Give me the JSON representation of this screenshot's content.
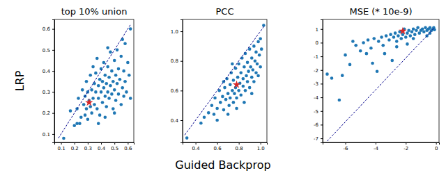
{
  "chart_data": [
    {
      "type": "scatter",
      "title": "top 10% union",
      "y_label": "LRP",
      "xlim": [
        0.05,
        0.645
      ],
      "ylim": [
        0.06,
        0.645
      ],
      "xticks": [
        0.1,
        0.2,
        0.3,
        0.4,
        0.5,
        0.6
      ],
      "yticks": [
        0.1,
        0.2,
        0.3,
        0.4,
        0.5,
        0.6
      ],
      "series": [
        {
          "type": "scatter",
          "color": "#1f77b4",
          "marker": "circle",
          "x": [
            0.12,
            0.17,
            0.2,
            0.22,
            0.23,
            0.24,
            0.25,
            0.26,
            0.27,
            0.28,
            0.28,
            0.29,
            0.29,
            0.3,
            0.3,
            0.31,
            0.32,
            0.32,
            0.33,
            0.33,
            0.34,
            0.34,
            0.35,
            0.35,
            0.36,
            0.36,
            0.37,
            0.37,
            0.38,
            0.38,
            0.39,
            0.39,
            0.4,
            0.4,
            0.41,
            0.41,
            0.42,
            0.42,
            0.43,
            0.43,
            0.44,
            0.44,
            0.45,
            0.45,
            0.46,
            0.46,
            0.47,
            0.47,
            0.48,
            0.48,
            0.49,
            0.49,
            0.5,
            0.5,
            0.51,
            0.51,
            0.52,
            0.52,
            0.53,
            0.53,
            0.54,
            0.55,
            0.55,
            0.56,
            0.57,
            0.57,
            0.58,
            0.58,
            0.59,
            0.6,
            0.61,
            0.62,
            0.62,
            0.56,
            0.45,
            0.5,
            0.43,
            0.38,
            0.22
          ],
          "values": [
            0.08,
            0.21,
            0.14,
            0.22,
            0.27,
            0.15,
            0.18,
            0.31,
            0.24,
            0.19,
            0.28,
            0.35,
            0.22,
            0.3,
            0.17,
            0.26,
            0.38,
            0.23,
            0.31,
            0.2,
            0.27,
            0.42,
            0.34,
            0.24,
            0.3,
            0.39,
            0.22,
            0.46,
            0.33,
            0.27,
            0.36,
            0.19,
            0.41,
            0.3,
            0.25,
            0.35,
            0.44,
            0.32,
            0.28,
            0.38,
            0.23,
            0.34,
            0.42,
            0.3,
            0.27,
            0.37,
            0.49,
            0.33,
            0.29,
            0.4,
            0.22,
            0.35,
            0.31,
            0.45,
            0.38,
            0.26,
            0.34,
            0.5,
            0.29,
            0.41,
            0.36,
            0.24,
            0.47,
            0.32,
            0.4,
            0.28,
            0.53,
            0.35,
            0.3,
            0.44,
            0.38,
            0.6,
            0.27,
            0.55,
            0.51,
            0.2,
            0.18,
            0.15,
            0.15
          ]
        },
        {
          "type": "scatter",
          "color": "#d62728",
          "marker": "star",
          "x": [
            0.31
          ],
          "values": [
            0.25
          ]
        },
        {
          "type": "line",
          "color": "#00008b",
          "line_style": "dashed",
          "x": [
            0.08,
            0.62
          ],
          "values": [
            0.08,
            0.62
          ]
        }
      ]
    },
    {
      "type": "scatter",
      "title": "PCC",
      "x_label": "Guided Backprop",
      "xlim": [
        0.28,
        1.06
      ],
      "ylim": [
        0.25,
        1.08
      ],
      "xticks": [
        0.4,
        0.6,
        0.8,
        {
          "value": 1,
          "label": "1.0"
        }
      ],
      "yticks": [
        0.4,
        0.6,
        0.8,
        {
          "value": 1,
          "label": "1.0"
        }
      ],
      "series": [
        {
          "type": "scatter",
          "color": "#1f77b4",
          "marker": "circle",
          "x": [
            0.32,
            0.45,
            0.48,
            0.52,
            0.55,
            0.57,
            0.58,
            0.6,
            0.62,
            0.63,
            0.65,
            0.66,
            0.67,
            0.68,
            0.69,
            0.7,
            0.71,
            0.72,
            0.72,
            0.73,
            0.74,
            0.75,
            0.75,
            0.76,
            0.77,
            0.77,
            0.78,
            0.79,
            0.8,
            0.8,
            0.81,
            0.82,
            0.82,
            0.83,
            0.84,
            0.84,
            0.85,
            0.86,
            0.86,
            0.87,
            0.88,
            0.88,
            0.89,
            0.9,
            0.9,
            0.91,
            0.92,
            0.92,
            0.93,
            0.94,
            0.94,
            0.95,
            0.96,
            0.96,
            0.97,
            0.98,
            0.98,
            0.99,
            1.0,
            1.0,
            1.01,
            1.03,
            0.85,
            0.78,
            0.7,
            0.92,
            0.66,
            0.74,
            0.6
          ],
          "values": [
            0.28,
            0.38,
            0.42,
            0.45,
            0.5,
            0.44,
            0.55,
            0.48,
            0.6,
            0.52,
            0.56,
            0.47,
            0.62,
            0.54,
            0.68,
            0.58,
            0.5,
            0.64,
            0.55,
            0.72,
            0.6,
            0.52,
            0.67,
            0.58,
            0.75,
            0.62,
            0.55,
            0.69,
            0.6,
            0.78,
            0.65,
            0.57,
            0.72,
            0.82,
            0.63,
            0.68,
            0.76,
            0.6,
            0.85,
            0.7,
            0.66,
            0.79,
            0.73,
            0.62,
            0.88,
            0.76,
            0.69,
            0.82,
            0.74,
            0.9,
            0.66,
            0.8,
            0.72,
            0.86,
            0.78,
            0.93,
            0.7,
            0.84,
            0.76,
            0.95,
            0.88,
            1.04,
            0.52,
            0.48,
            0.44,
            0.58,
            0.66,
            0.78,
            0.4
          ]
        },
        {
          "type": "scatter",
          "color": "#d62728",
          "marker": "star",
          "x": [
            0.78
          ],
          "values": [
            0.64
          ]
        },
        {
          "type": "line",
          "color": "#00008b",
          "line_style": "dashed",
          "x": [
            0.3,
            1.04
          ],
          "values": [
            0.3,
            1.04
          ]
        }
      ]
    },
    {
      "type": "scatter",
      "title": "MSE (* 10e-9)",
      "xlim": [
        -7.5,
        0.2
      ],
      "ylim": [
        -7.3,
        1.7
      ],
      "xticks": [
        -6,
        -4,
        -2,
        0
      ],
      "yticks": [
        1,
        0,
        -1,
        -2,
        -3,
        -4,
        -5,
        -6,
        -7
      ],
      "series": [
        {
          "type": "scatter",
          "color": "#1f77b4",
          "marker": "circle",
          "x": [
            -7.2,
            -6.9,
            -6.4,
            -6.2,
            -6.0,
            -5.7,
            -5.5,
            -5.3,
            -5.0,
            -4.8,
            -4.5,
            -4.3,
            -4.1,
            -3.9,
            -3.8,
            -3.6,
            -3.4,
            -3.3,
            -3.1,
            -3.0,
            -2.9,
            -2.8,
            -2.7,
            -2.6,
            -2.5,
            -2.4,
            -2.3,
            -2.2,
            -2.1,
            -2.0,
            -1.9,
            -1.8,
            -1.7,
            -1.6,
            -1.5,
            -1.4,
            -1.3,
            -1.2,
            -1.1,
            -1.0,
            -0.9,
            -0.8,
            -0.7,
            -0.6,
            -0.5,
            -0.4,
            -0.3,
            -0.2,
            -0.15,
            -0.1,
            -1.9,
            -1.5,
            -0.6,
            -0.4,
            -2.6,
            -3.5,
            -4.6,
            -4.2
          ],
          "values": [
            -2.3,
            -2.6,
            -4.2,
            -2.4,
            -0.9,
            -1.6,
            0.1,
            -0.2,
            -0.6,
            0.0,
            0.2,
            -0.4,
            0.3,
            -2.1,
            0.1,
            0.4,
            -0.8,
            0.5,
            0.2,
            0.6,
            -1.3,
            0.4,
            0.7,
            0.1,
            0.5,
            0.8,
            0.3,
            0.6,
            1.0,
            0.4,
            0.7,
            0.9,
            0.5,
            0.8,
            1.0,
            0.6,
            0.9,
            1.1,
            0.7,
            0.9,
            1.0,
            0.8,
            1.1,
            0.9,
            1.0,
            1.1,
            0.9,
            1.0,
            1.1,
            0.95,
            -0.1,
            0.3,
            0.5,
            0.7,
            -0.3,
            -0.2,
            -0.8,
            -1.5
          ]
        },
        {
          "type": "scatter",
          "color": "#d62728",
          "marker": "star",
          "x": [
            -2.2
          ],
          "values": [
            0.85
          ]
        },
        {
          "type": "line",
          "color": "#00008b",
          "line_style": "dashed",
          "x": [
            -7.2,
            -0.1
          ],
          "values": [
            -7.2,
            1.1
          ]
        }
      ]
    }
  ]
}
